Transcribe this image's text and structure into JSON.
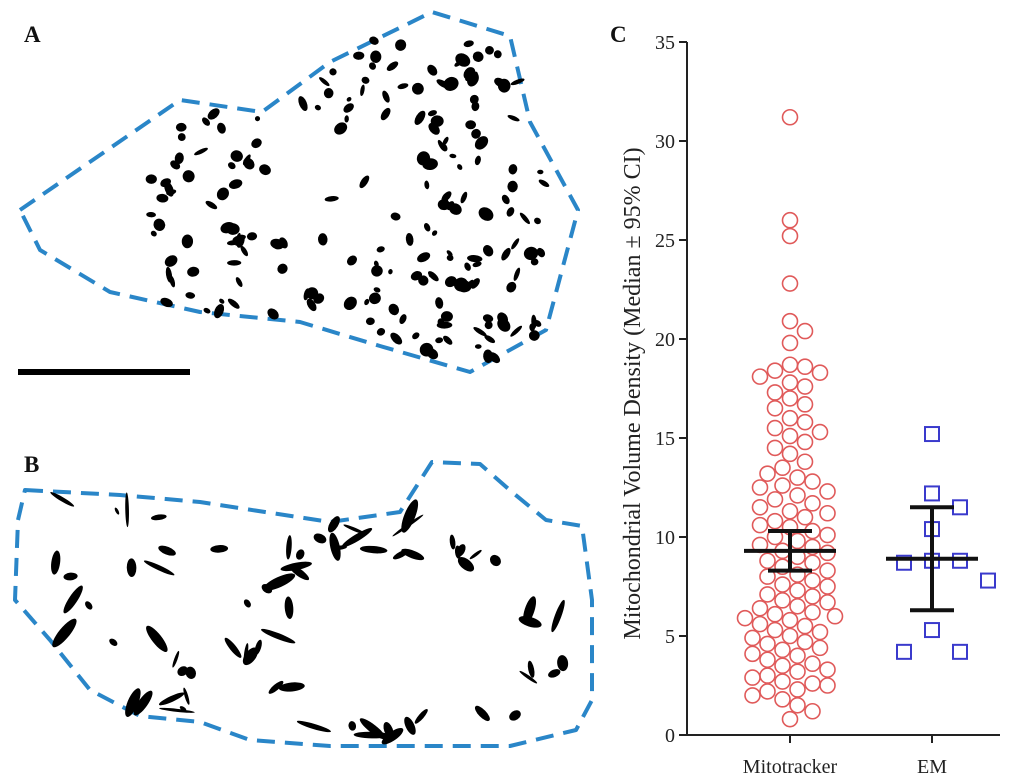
{
  "panel_labels": [
    "A",
    "B",
    "C"
  ],
  "chart_data": {
    "type": "strip",
    "ylabel": "Mitochondrial Volume Density (Median ± 95% CI)",
    "categories": [
      "Mitotracker",
      "EM"
    ],
    "ylim": [
      0,
      35
    ],
    "yticks": [
      0,
      5,
      10,
      15,
      20,
      25,
      30,
      35
    ],
    "groups": [
      {
        "color": "#e05a5a",
        "marker": "circle",
        "median": 9.3,
        "ci_low": 8.3,
        "ci_high": 10.3,
        "values": [
          31.2,
          26.0,
          25.2,
          22.8,
          20.9,
          20.4,
          19.8,
          18.7,
          18.6,
          18.4,
          18.3,
          18.1,
          17.8,
          17.6,
          17.3,
          17.0,
          16.7,
          16.5,
          16.0,
          15.8,
          15.5,
          15.3,
          15.1,
          14.8,
          14.5,
          14.2,
          13.8,
          13.5,
          13.2,
          13.0,
          12.8,
          12.6,
          12.5,
          12.3,
          12.1,
          11.9,
          11.7,
          11.5,
          11.3,
          11.2,
          11.0,
          10.8,
          10.6,
          10.5,
          10.3,
          10.1,
          10.0,
          9.8,
          9.6,
          9.5,
          9.3,
          9.2,
          9.0,
          8.8,
          8.7,
          8.5,
          8.3,
          8.1,
          8.0,
          7.8,
          7.6,
          7.5,
          7.3,
          7.1,
          7.0,
          6.8,
          6.7,
          6.5,
          6.4,
          6.2,
          6.1,
          6.0,
          5.9,
          5.8,
          5.6,
          5.5,
          5.3,
          5.2,
          5.0,
          4.9,
          4.7,
          4.6,
          4.4,
          4.3,
          4.1,
          4.0,
          3.8,
          3.6,
          3.5,
          3.3,
          3.2,
          3.0,
          2.9,
          2.7,
          2.6,
          2.5,
          2.3,
          2.2,
          2.0,
          1.8,
          1.5,
          1.2,
          0.8
        ]
      },
      {
        "color": "#3a3acc",
        "marker": "square",
        "median": 8.9,
        "ci_low": 6.3,
        "ci_high": 11.5,
        "values": [
          15.2,
          12.2,
          11.5,
          10.4,
          8.8,
          8.8,
          8.7,
          7.8,
          5.3,
          4.2,
          4.2
        ]
      }
    ]
  }
}
